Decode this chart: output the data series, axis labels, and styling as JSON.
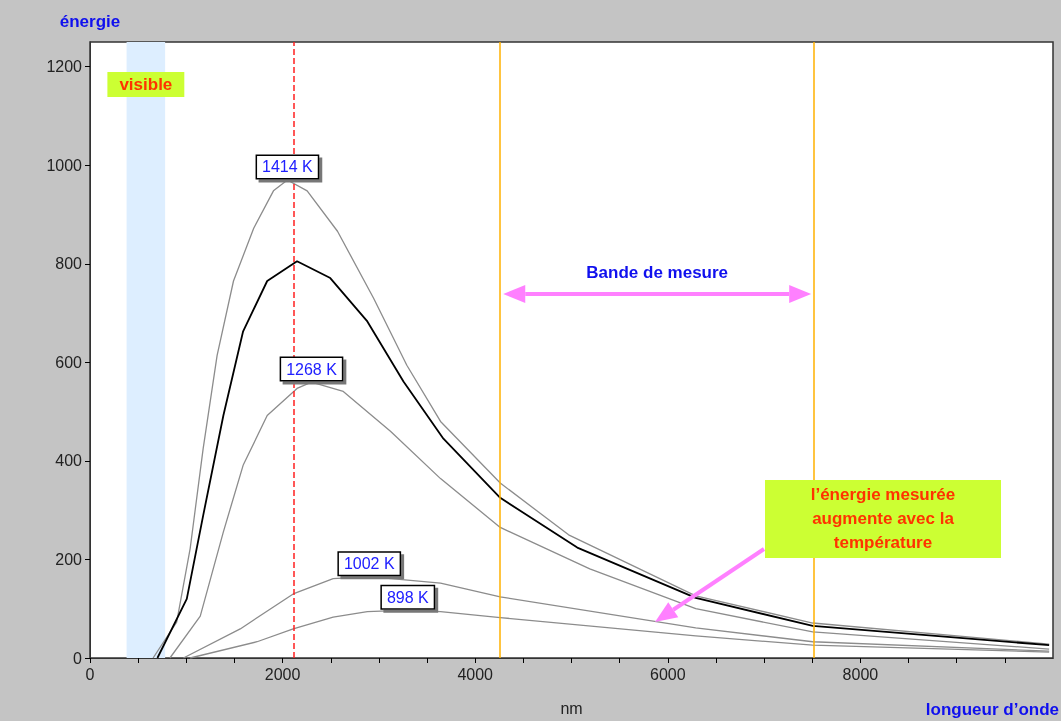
{
  "chart_data": {
    "type": "line",
    "xlabel": "nm",
    "ylabel": "énergie",
    "xlim": [
      0,
      10000
    ],
    "ylim": [
      0,
      1250
    ],
    "xticks": [
      0,
      {
        "value": 500,
        "label": null
      },
      {
        "value": 1000,
        "label": null
      },
      {
        "value": 1500,
        "label": null
      },
      2000,
      {
        "value": 2500,
        "label": null
      },
      {
        "value": 3000,
        "label": null
      },
      {
        "value": 3500,
        "label": null
      },
      4000,
      {
        "value": 4500,
        "label": null
      },
      {
        "value": 5000,
        "label": null
      },
      {
        "value": 5500,
        "label": null
      },
      6000,
      {
        "value": 6500,
        "label": null
      },
      {
        "value": 7000,
        "label": null
      },
      {
        "value": 7500,
        "label": null
      },
      8000,
      {
        "value": 8500,
        "label": null
      },
      {
        "value": 9000,
        "label": null
      },
      {
        "value": 9500,
        "label": null
      }
    ],
    "yticks": [
      0,
      200,
      400,
      600,
      800,
      1000,
      1200
    ],
    "marker": "none",
    "series": [
      {
        "name": "1414 K",
        "color": "#8c8c8c",
        "x": [
          655,
          900,
          1040,
          1175,
          1320,
          1490,
          1700,
          1905,
          2050,
          2255,
          2570,
          2945,
          3290,
          3640,
          4260,
          4970,
          6290,
          7505,
          9960
        ],
        "values": [
          0,
          73,
          222,
          425,
          614,
          765,
          872,
          948,
          970,
          948,
          866,
          730,
          594,
          480,
          355,
          250,
          126,
          71,
          28
        ]
      },
      {
        "color": "#000000",
        "x": [
          700,
          1005,
          1175,
          1385,
          1590,
          1840,
          2150,
          2495,
          2880,
          3255,
          3670,
          4260,
          5060,
          6290,
          7505,
          9960
        ],
        "values": [
          0,
          120,
          289,
          492,
          663,
          765,
          805,
          771,
          683,
          561,
          445,
          325,
          224,
          122,
          65,
          26
        ]
      },
      {
        "name": "1268 K",
        "color": "#8c8c8c",
        "x": [
          830,
          1145,
          1385,
          1590,
          1840,
          2150,
          2300,
          2630,
          3120,
          3640,
          4260,
          5190,
          6290,
          7505,
          9960
        ],
        "values": [
          0,
          85,
          256,
          391,
          492,
          547,
          560,
          541,
          460,
          364,
          265,
          181,
          100,
          53,
          18
        ]
      },
      {
        "name": "1002 K",
        "color": "#8c8c8c",
        "x": [
          970,
          1560,
          2110,
          2525,
          2900,
          3640,
          4260,
          6290,
          7505,
          9960
        ],
        "values": [
          0,
          59,
          130,
          161,
          165,
          152,
          124,
          61,
          33,
          14
        ]
      },
      {
        "name": "898 K",
        "color": "#8c8c8c",
        "x": [
          1040,
          1735,
          2110,
          2525,
          2880,
          3300,
          3640,
          4260,
          6290,
          7505,
          9960
        ],
        "values": [
          0,
          33,
          59,
          83,
          94,
          97,
          94,
          82,
          45,
          26,
          12
        ]
      }
    ],
    "ref_lines": [
      {
        "axis": "x",
        "value": 2120,
        "color": "#ff2020",
        "line_style": "dashed"
      },
      {
        "axis": "x",
        "value": 4260,
        "color": "#ffb000"
      },
      {
        "axis": "x",
        "value": 7520,
        "color": "#ffb000"
      }
    ],
    "bands": [
      {
        "axis": "x",
        "from": 380,
        "to": 780,
        "label": "visible",
        "color": "#ddeeff"
      }
    ],
    "annotations": [
      "Bande de mesure",
      "l’énergie mesurée augmente avec la température",
      "longueur d’onde"
    ]
  }
}
